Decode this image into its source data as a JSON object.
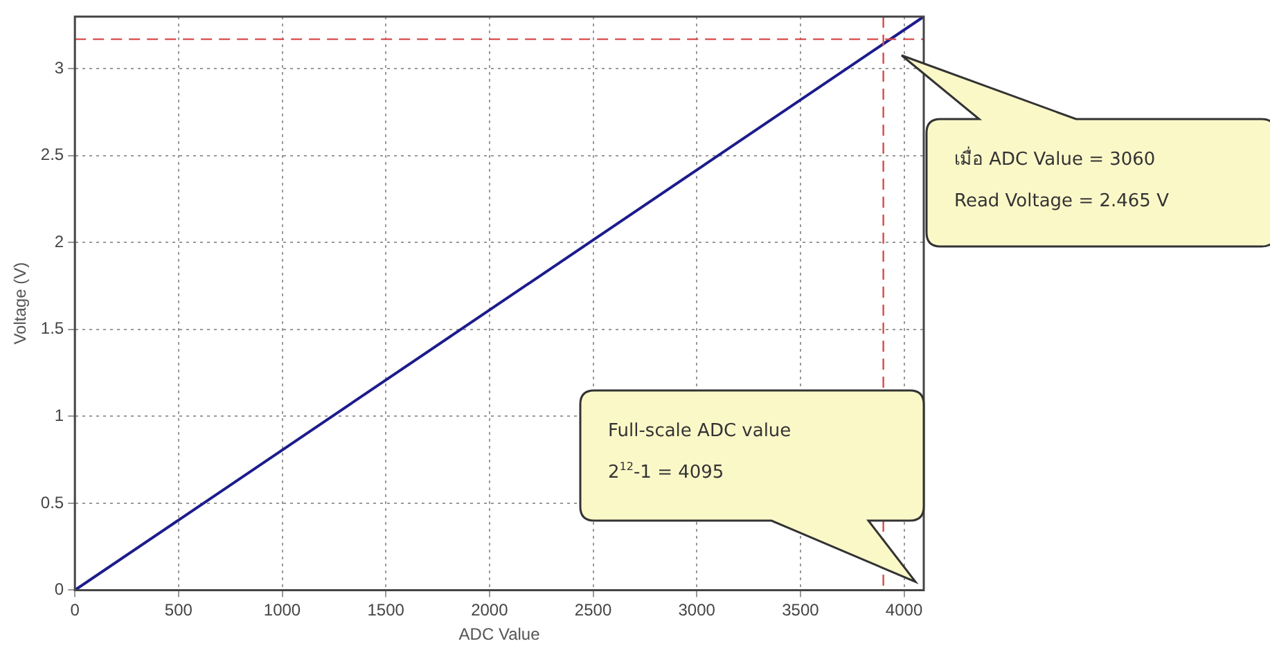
{
  "chart_data": {
    "type": "line",
    "xlabel": "ADC Value",
    "ylabel": "Voltage (V)",
    "x": [
      0,
      4095
    ],
    "series": [
      {
        "color": "#1c1c8c",
        "values": [
          0,
          3.3
        ]
      }
    ],
    "xlim": [
      0,
      4095
    ],
    "xticks": [
      0,
      500,
      1000,
      1500,
      2000,
      2500,
      3000,
      3500,
      4000
    ],
    "ylim": [
      0,
      3.3
    ],
    "yticks": [
      0,
      0.5,
      1,
      1.5,
      2,
      2.5,
      3
    ],
    "grid": true,
    "legend": false,
    "marker": "none",
    "line_style": "solid",
    "ref_lines": [
      {
        "axis": "y",
        "value": 3.17,
        "color": "#d84a4a",
        "line_style": "dashed"
      },
      {
        "axis": "x",
        "value": 3900,
        "color": "#d84a4a",
        "line_style": "dashed"
      }
    ],
    "annotations": [
      "เมื่อ ADC Value = 3060\nRead Voltage = 2.465 V",
      "Full-scale ADC value\n2$^{12}$-1 = 4095"
    ]
  }
}
